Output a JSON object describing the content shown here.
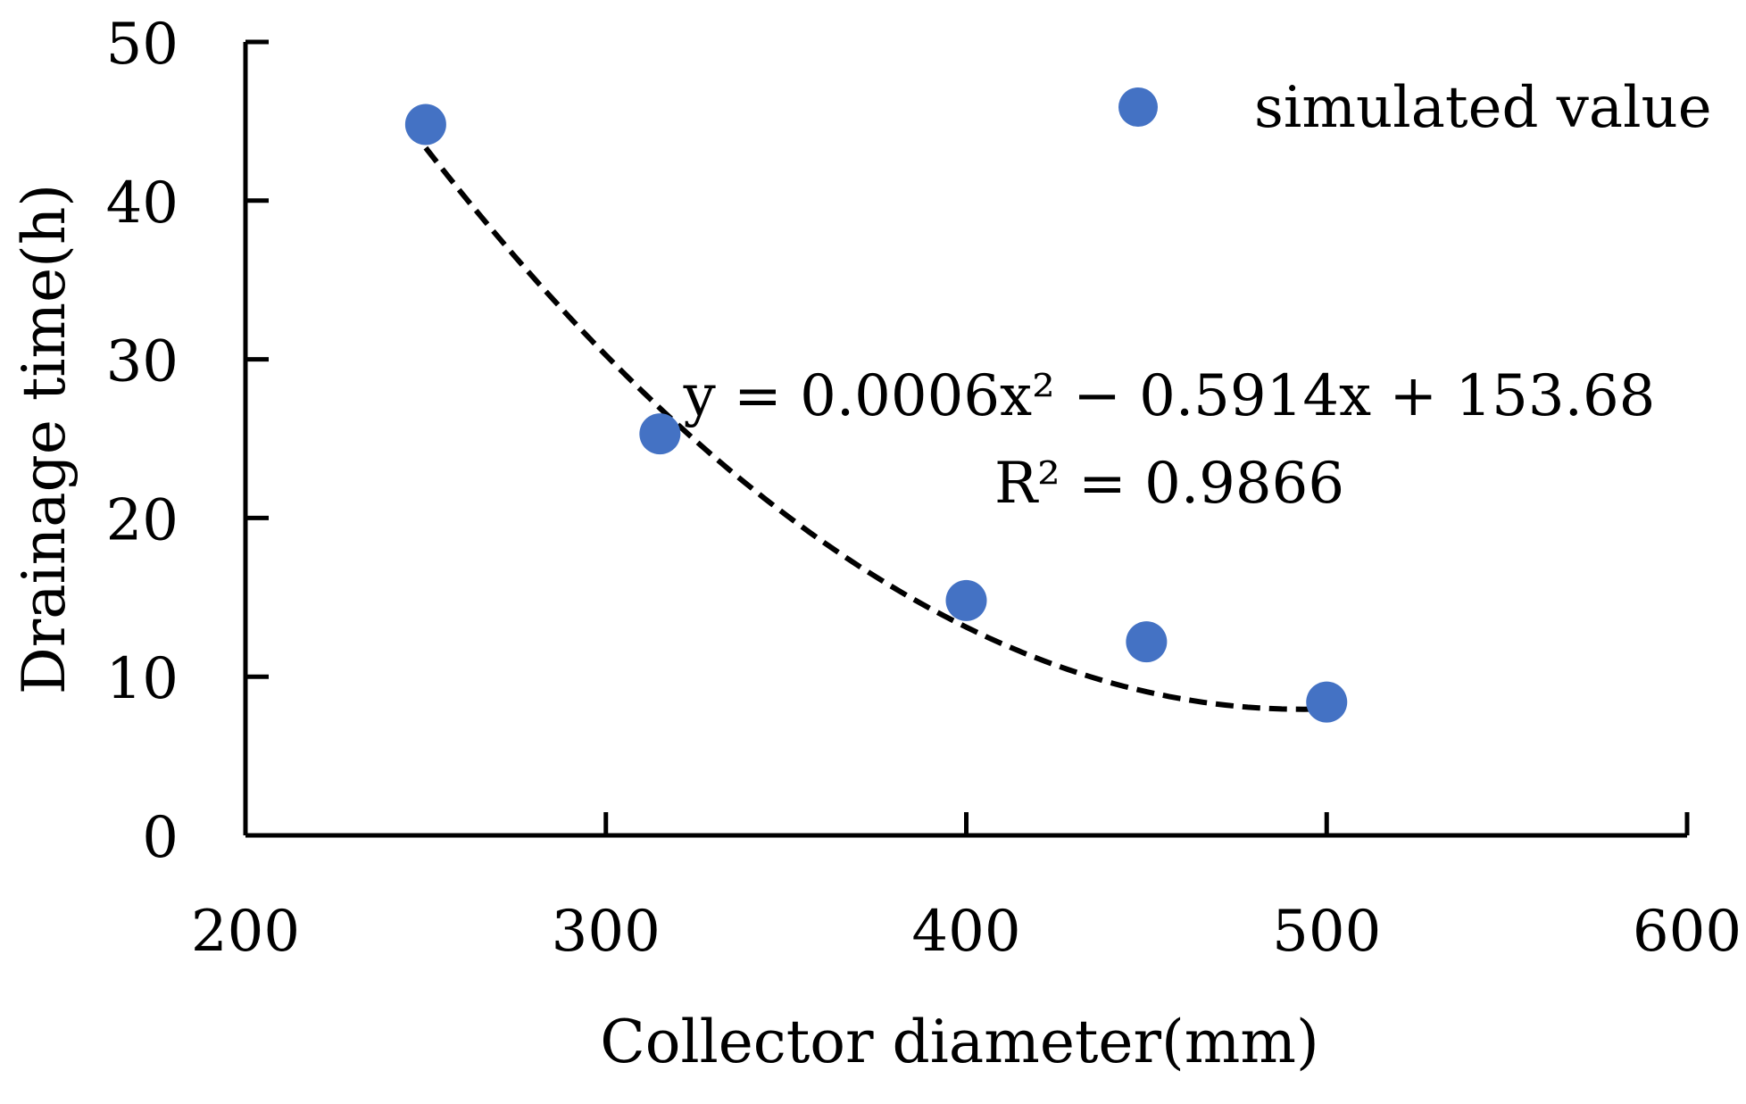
{
  "chart_data": {
    "type": "scatter",
    "title": "",
    "xlabel": "Collector diameter(mm)",
    "ylabel": "Drainage time(h)",
    "xlim": [
      200,
      600
    ],
    "ylim": [
      0,
      50
    ],
    "x_ticks": [
      200,
      300,
      400,
      500,
      600
    ],
    "y_ticks": [
      0,
      10,
      20,
      30,
      40,
      50
    ],
    "grid": false,
    "legend_position": "top-right",
    "series": [
      {
        "name": "simulated value",
        "color": "#4472c4",
        "x": [
          250,
          315,
          400,
          450,
          500
        ],
        "y": [
          44.8,
          25.3,
          14.8,
          12.2,
          8.4
        ]
      }
    ],
    "trendline": {
      "type": "polynomial-2",
      "style": "dashed",
      "color": "#000000",
      "coefficients": [
        0.0006,
        -0.5914,
        153.68
      ],
      "x_range": [
        250,
        500
      ],
      "equation": "y = 0.0006x² − 0.5914x + 153.68",
      "r_squared": "R² = 0.9866"
    }
  }
}
